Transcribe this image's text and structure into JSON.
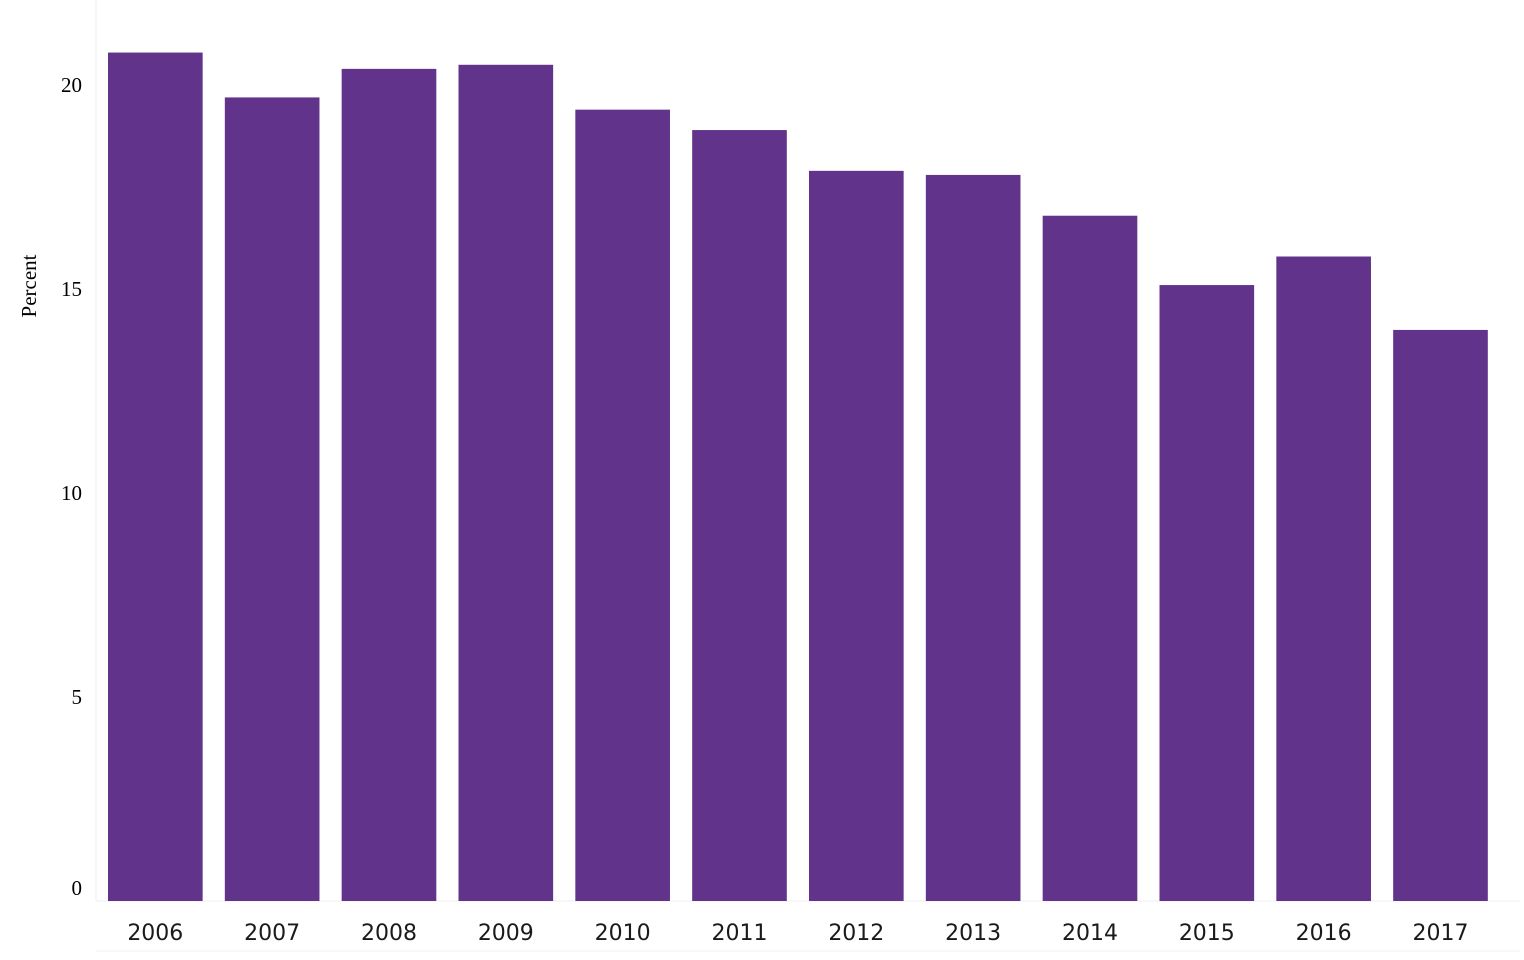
{
  "chart_data": {
    "type": "bar",
    "title": "",
    "xlabel": "",
    "ylabel": "Percent",
    "categories": [
      "2006",
      "2007",
      "2008",
      "2009",
      "2010",
      "2011",
      "2012",
      "2013",
      "2014",
      "2015",
      "2016",
      "2017"
    ],
    "values": [
      20.8,
      19.7,
      20.4,
      20.5,
      19.4,
      18.9,
      17.9,
      17.8,
      16.8,
      15.1,
      15.8,
      14.0
    ],
    "ylim": [
      0,
      21.5
    ],
    "yticks": [
      0,
      5,
      10,
      15,
      20
    ],
    "ytick_labels": [
      "0",
      "5",
      "10",
      "15",
      "20"
    ],
    "grid": false,
    "legend": "none",
    "colors": {
      "bar": "#61338a"
    }
  }
}
